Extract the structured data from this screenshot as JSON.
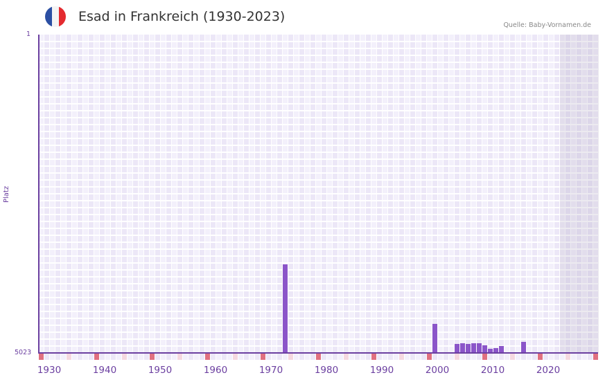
{
  "header": {
    "title": "Esad in Frankreich (1930-2023)",
    "source": "Quelle: Baby-Vornamen.de",
    "flag_colors": [
      "#2b4fa3",
      "#f4f4f4",
      "#e42a2f"
    ]
  },
  "axis": {
    "y_top": "1",
    "y_bottom": "5023",
    "y_title": "Platz",
    "x_labels": [
      "1930",
      "1940",
      "1950",
      "1960",
      "1970",
      "1980",
      "1990",
      "2000",
      "2010",
      "2020"
    ]
  },
  "colors": {
    "bar": "#8b55c9",
    "axis": "#6b3fa0",
    "grid_light": "#f3f0fb",
    "grid_dark": "#ece7f7",
    "tick_major": "#e07080",
    "tick_minor": "#f5d8e0"
  },
  "chart_data": {
    "type": "bar",
    "title": "Esad in Frankreich (1930-2023)",
    "xlabel": "",
    "ylabel": "Platz",
    "ylim": [
      5023,
      1
    ],
    "y_inverted": true,
    "x_range": [
      1928,
      2028
    ],
    "future_shaded_from": 2022,
    "categories": [
      1972,
      1999,
      2003,
      2004,
      2005,
      2006,
      2007,
      2008,
      2009,
      2010,
      2011,
      2015
    ],
    "values": [
      3625,
      4563,
      4880,
      4869,
      4880,
      4869,
      4869,
      4902,
      4957,
      4946,
      4913,
      4847
    ],
    "legend": [],
    "grid": true
  }
}
